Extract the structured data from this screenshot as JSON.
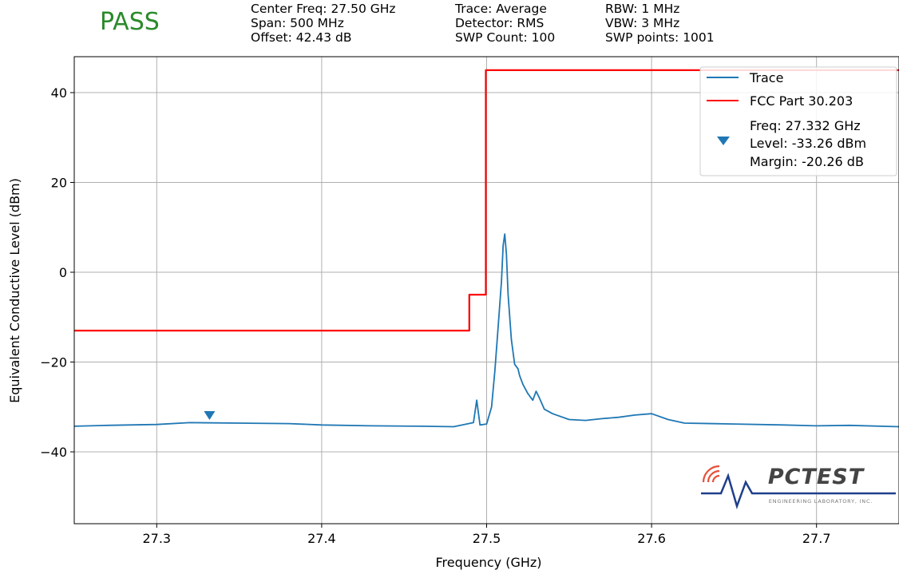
{
  "status": {
    "text": "PASS",
    "color": "#2a8a2a"
  },
  "info": {
    "col1": [
      "Center Freq: 27.50 GHz",
      "Span: 500 MHz",
      "Offset: 42.43 dB"
    ],
    "col2": [
      "Trace: Average",
      "Detector: RMS",
      "SWP Count: 100"
    ],
    "col3": [
      "RBW: 1 MHz",
      "VBW: 3 MHz",
      "SWP points: 1001"
    ]
  },
  "logo": {
    "text": "PCTEST",
    "subtext": "ENGINEERING LABORATORY, INC."
  },
  "chart_data": {
    "type": "line",
    "xlabel": "Frequency (GHz)",
    "ylabel": "Equivalent Conductive Level (dBm)",
    "xlim": [
      27.25,
      27.75
    ],
    "ylim": [
      -56,
      48
    ],
    "xticks": [
      27.3,
      27.4,
      27.5,
      27.6,
      27.7
    ],
    "xtick_labels": [
      "27.3",
      "27.4",
      "27.5",
      "27.6",
      "27.7"
    ],
    "yticks": [
      40,
      20,
      0,
      -20,
      -40
    ],
    "ytick_labels": [
      "40",
      "20",
      "0",
      "−20",
      "−40"
    ],
    "grid": true,
    "legend_position": "top-right",
    "series": [
      {
        "name": "Trace",
        "color": "#1f77b4",
        "x": [
          27.25,
          27.27,
          27.3,
          27.32,
          27.35,
          27.38,
          27.4,
          27.43,
          27.46,
          27.48,
          27.492,
          27.494,
          27.496,
          27.5,
          27.503,
          27.505,
          27.507,
          27.509,
          27.51,
          27.511,
          27.512,
          27.513,
          27.515,
          27.517,
          27.519,
          27.52,
          27.522,
          27.525,
          27.528,
          27.53,
          27.532,
          27.535,
          27.54,
          27.55,
          27.56,
          27.57,
          27.58,
          27.59,
          27.6,
          27.61,
          27.62,
          27.65,
          27.68,
          27.7,
          27.72,
          27.75
        ],
        "y": [
          -34.3,
          -34.1,
          -33.9,
          -33.5,
          -33.6,
          -33.7,
          -34.0,
          -34.2,
          -34.3,
          -34.4,
          -33.5,
          -28.5,
          -34.0,
          -33.8,
          -30.0,
          -22.0,
          -12.0,
          -2.0,
          6.0,
          8.5,
          4.0,
          -5.0,
          -15.0,
          -20.5,
          -21.5,
          -23.0,
          -25.0,
          -27.0,
          -28.5,
          -26.5,
          -28.0,
          -30.5,
          -31.5,
          -32.8,
          -33.0,
          -32.6,
          -32.3,
          -31.8,
          -31.5,
          -32.8,
          -33.6,
          -33.8,
          -34.0,
          -34.2,
          -34.1,
          -34.4
        ]
      },
      {
        "name": "FCC Part 30.203",
        "color": "#ff0000",
        "x": [
          27.25,
          27.4895,
          27.4895,
          27.4995,
          27.4995,
          27.75
        ],
        "y": [
          -13,
          -13,
          -5,
          -5,
          45,
          45
        ]
      }
    ],
    "marker": {
      "x": 27.332,
      "y": -32.0,
      "color": "#1f77b4",
      "label_lines": [
        "Freq: 27.332 GHz",
        "Level: -33.26 dBm",
        "Margin: -20.26 dB"
      ]
    }
  }
}
